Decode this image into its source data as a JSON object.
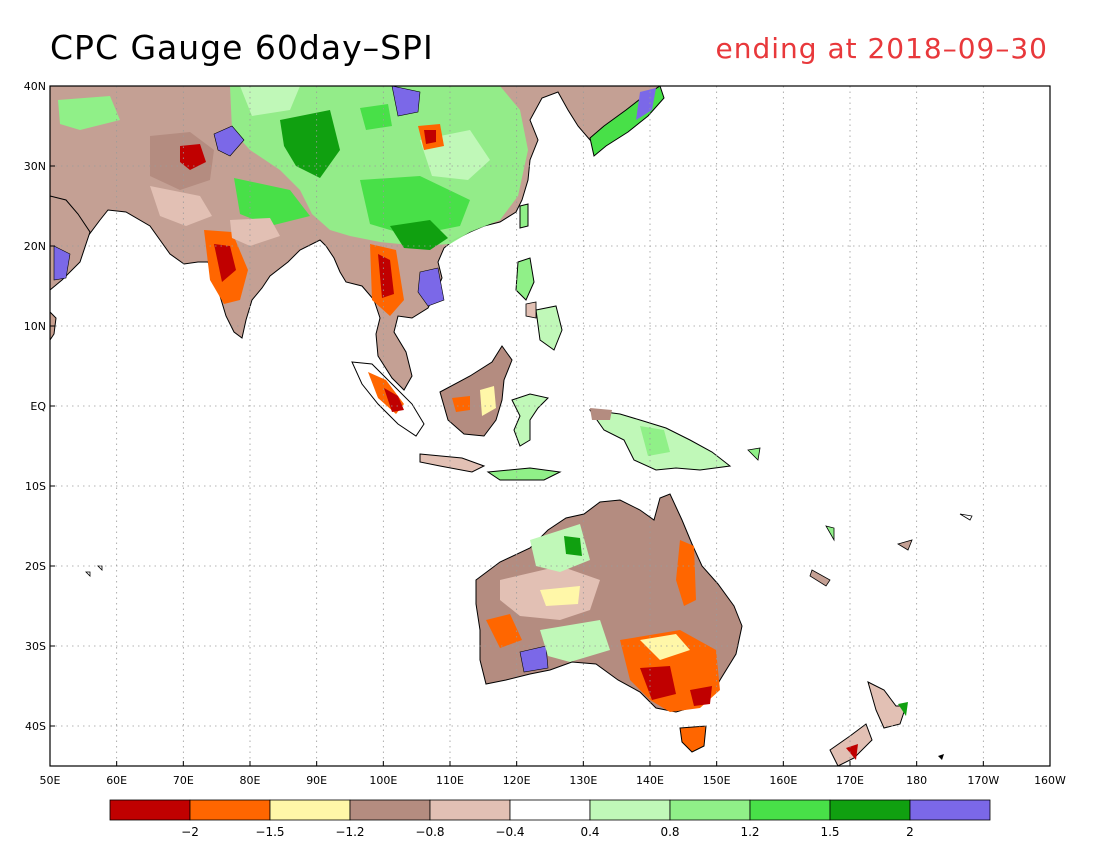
{
  "title": "CPC Gauge 60day–SPI",
  "subtitle": "ending at 2018–09–30",
  "map": {
    "lon_range": [
      50,
      200
    ],
    "lat_range": [
      -45,
      40
    ],
    "lon_ticks": [
      {
        "value": 50,
        "label": "50E"
      },
      {
        "value": 60,
        "label": "60E"
      },
      {
        "value": 70,
        "label": "70E"
      },
      {
        "value": 80,
        "label": "80E"
      },
      {
        "value": 90,
        "label": "90E"
      },
      {
        "value": 100,
        "label": "100E"
      },
      {
        "value": 110,
        "label": "110E"
      },
      {
        "value": 120,
        "label": "120E"
      },
      {
        "value": 130,
        "label": "130E"
      },
      {
        "value": 140,
        "label": "140E"
      },
      {
        "value": 150,
        "label": "150E"
      },
      {
        "value": 160,
        "label": "160E"
      },
      {
        "value": 170,
        "label": "170E"
      },
      {
        "value": 180,
        "label": "180"
      },
      {
        "value": 190,
        "label": "170W"
      },
      {
        "value": 200,
        "label": "160W"
      }
    ],
    "lat_ticks": [
      {
        "value": 40,
        "label": "40N"
      },
      {
        "value": 30,
        "label": "30N"
      },
      {
        "value": 20,
        "label": "20N"
      },
      {
        "value": 10,
        "label": "10N"
      },
      {
        "value": 0,
        "label": "EQ"
      },
      {
        "value": -10,
        "label": "10S"
      },
      {
        "value": -20,
        "label": "20S"
      },
      {
        "value": -30,
        "label": "30S"
      },
      {
        "value": -40,
        "label": "40S"
      }
    ],
    "grid": "dotted"
  },
  "colorbar": {
    "colors": [
      "#c00000",
      "#ff6600",
      "#fff7a8",
      "#b48c80",
      "#e2c0b4",
      "#ffffff",
      "#c0f8b8",
      "#90f088",
      "#48e048",
      "#10a010",
      "#7b68e8"
    ],
    "labels": [
      "−2",
      "−1.5",
      "−1.2",
      "−0.8",
      "−0.4",
      "0.4",
      "0.8",
      "1.2",
      "1.5",
      "2"
    ]
  }
}
